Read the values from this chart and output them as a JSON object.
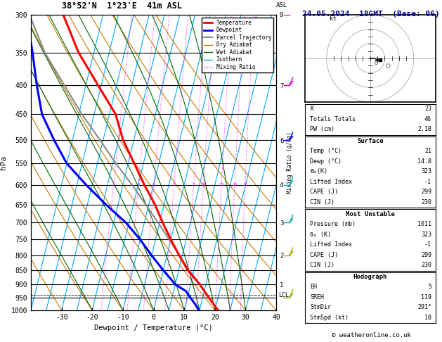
{
  "title_left": "38°52'N  1°23'E  41m ASL",
  "title_right": "24.05.2024  18GMT  (Base: 06)",
  "xlabel": "Dewpoint / Temperature (°C)",
  "ylabel_left": "hPa",
  "pressure_major": [
    300,
    350,
    400,
    450,
    500,
    550,
    600,
    650,
    700,
    750,
    800,
    850,
    900,
    950,
    1000
  ],
  "temp_ticks": [
    -30,
    -20,
    -10,
    0,
    10,
    20,
    30,
    40
  ],
  "isotherm_temps": [
    -40,
    -35,
    -30,
    -25,
    -20,
    -15,
    -10,
    -5,
    0,
    5,
    10,
    15,
    20,
    25,
    30,
    35,
    40
  ],
  "dry_adiabat_temps": [
    -40,
    -30,
    -20,
    -10,
    0,
    10,
    20,
    30,
    40,
    50,
    60,
    70,
    80
  ],
  "wet_adiabat_temps": [
    -20,
    -10,
    0,
    5,
    10,
    15,
    20,
    25,
    30
  ],
  "mixing_ratios": [
    1,
    2,
    3,
    5,
    8,
    10,
    15,
    20,
    25
  ],
  "t_min": -40,
  "t_max": 40,
  "p_min": 300,
  "p_max": 1000,
  "skew_factor": 45,
  "temperature_profile_p": [
    1000,
    975,
    950,
    925,
    900,
    850,
    800,
    750,
    700,
    650,
    600,
    550,
    500,
    450,
    400,
    350,
    300
  ],
  "temperature_profile_t": [
    21.0,
    19.0,
    17.0,
    15.0,
    13.0,
    8.0,
    4.0,
    0.0,
    -4.0,
    -8.0,
    -13.0,
    -18.0,
    -23.5,
    -28.0,
    -36.0,
    -45.0,
    -53.0
  ],
  "dewpoint_profile_p": [
    1000,
    975,
    950,
    925,
    900,
    850,
    800,
    750,
    700,
    650,
    600,
    550,
    500,
    450,
    400,
    350,
    300
  ],
  "dewpoint_profile_t": [
    14.8,
    13.0,
    11.0,
    9.0,
    5.0,
    0.0,
    -5.0,
    -10.0,
    -16.0,
    -24.0,
    -32.0,
    -40.0,
    -46.0,
    -52.0,
    -56.0,
    -60.0,
    -65.0
  ],
  "parcel_profile_p": [
    1000,
    950,
    900,
    850,
    800,
    750,
    700,
    650,
    600,
    550,
    500,
    450,
    400,
    350,
    300
  ],
  "parcel_profile_t": [
    21.0,
    17.0,
    13.0,
    8.5,
    4.0,
    -0.5,
    -5.5,
    -11.0,
    -17.0,
    -24.0,
    -31.0,
    -39.0,
    -47.0,
    -56.0,
    -64.0
  ],
  "lcl_pressure": 940,
  "km_labels_p": [
    300,
    400,
    500,
    600,
    700,
    800,
    900
  ],
  "km_labels_v": [
    "9",
    "7",
    "6",
    "4",
    "3",
    "2",
    "1"
  ],
  "mixing_ratio_label_p": 600,
  "colors": {
    "temperature": "#ff0000",
    "dewpoint": "#0000ff",
    "parcel": "#888888",
    "dry_adiabat": "#cc7700",
    "wet_adiabat": "#006600",
    "isotherm": "#00aaff",
    "mixing_ratio": "#ff00ff",
    "background": "#ffffff"
  },
  "wind_barb_pressures": [
    300,
    400,
    500,
    600,
    700,
    800,
    950
  ],
  "wind_barb_colors": [
    "#cc00cc",
    "#cc00cc",
    "#0000ff",
    "#00aaaa",
    "#00aaaa",
    "#aaaa00",
    "#88aa00"
  ],
  "stats": {
    "K": "23",
    "TT": "46",
    "PW": "2.18",
    "surf_temp": "21",
    "surf_dewp": "14.8",
    "surf_theta_e": "323",
    "surf_li": "-1",
    "surf_cape": "299",
    "surf_cin": "230",
    "mu_pressure": "1011",
    "mu_theta_e": "323",
    "mu_li": "-1",
    "mu_cape": "299",
    "mu_cin": "230",
    "hodo_eh": "5",
    "hodo_sreh": "119",
    "hodo_stmdir": "291°",
    "hodo_stmspd": "18"
  }
}
